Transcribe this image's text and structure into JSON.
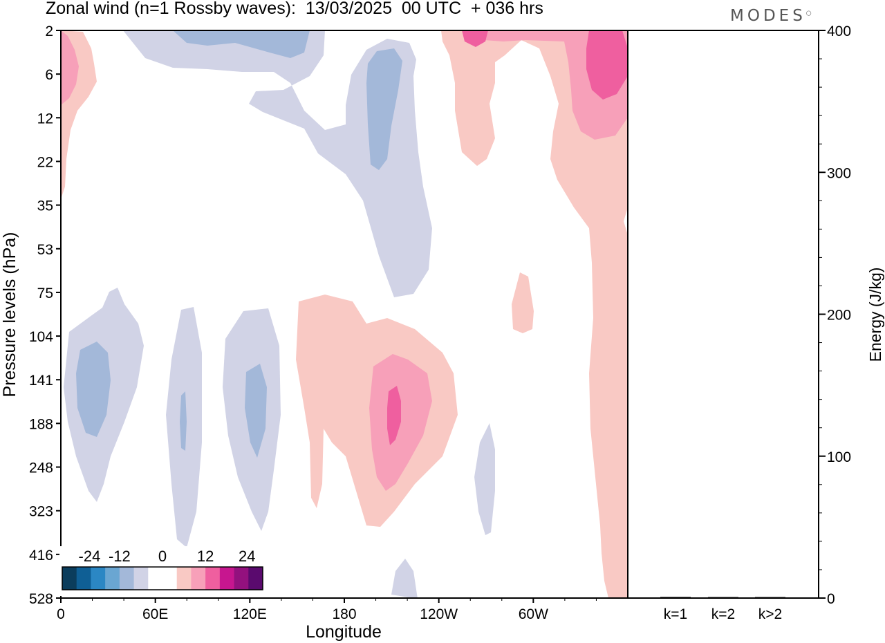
{
  "header": {
    "title": "Zonal wind (n=1 Rossby waves):  13/03/2025  00 UTC  + 036 hrs",
    "brand": "MODES"
  },
  "chart_data": [
    {
      "type": "heatmap",
      "title": "Zonal wind (n=1 Rossby waves):  13/03/2025  00 UTC  + 036 hrs",
      "xlabel": "Longitude",
      "ylabel": "Pressure levels (hPa)",
      "x_ticks": [
        "0",
        "60E",
        "120E",
        "180",
        "120W",
        "60W"
      ],
      "x_tick_degrees": [
        0,
        60,
        120,
        180,
        240,
        300
      ],
      "x_range_degrees": [
        0,
        360
      ],
      "y_ticks": [
        "2",
        "6",
        "12",
        "22",
        "35",
        "53",
        "75",
        "104",
        "141",
        "188",
        "248",
        "323",
        "416",
        "528"
      ],
      "y_axis": "reversed pressure levels (2 at top, 528 at bottom)",
      "colorbar": {
        "tick_labels": [
          "-24",
          "-12",
          "0",
          "12",
          "24"
        ],
        "colors": [
          "#0b3d5c",
          "#0f5f95",
          "#2b87c4",
          "#6aa6d2",
          "#a3b8d9",
          "#d1d3e6",
          "#ffffff",
          "#ffffff",
          "#f9c9c4",
          "#f7a0b9",
          "#ef5f9f",
          "#c7168f",
          "#93117e",
          "#5a0a6e"
        ]
      },
      "features": [
        {
          "sign": "negative",
          "level": "-12",
          "center_lon": 20,
          "center_level": "141"
        },
        {
          "sign": "negative",
          "level": "-12",
          "center_lon": 78,
          "center_level": "188"
        },
        {
          "sign": "negative",
          "level": "-12",
          "center_lon": 123,
          "center_level": "188"
        },
        {
          "sign": "negative",
          "level": "-12",
          "center_lon": 205,
          "center_level": "12"
        },
        {
          "sign": "negative",
          "level": "-6",
          "center_lon": 70,
          "center_level": "2"
        },
        {
          "sign": "positive",
          "level": "18",
          "center_lon": 212,
          "center_level": "188"
        },
        {
          "sign": "positive",
          "level": "18",
          "center_lon": 342,
          "center_level": "6"
        },
        {
          "sign": "positive",
          "level": "12",
          "center_lon": 5,
          "center_level": "6"
        },
        {
          "sign": "positive",
          "level": "6",
          "center_lon": 292,
          "center_level": "104"
        }
      ]
    },
    {
      "type": "bar",
      "ylabel": "Energy (J/kg)",
      "categories": [
        "k=1",
        "k=2",
        "k>2"
      ],
      "values": [
        0.8,
        0.3,
        0.6
      ],
      "ylim": [
        0,
        400
      ],
      "y_ticks": [
        "0",
        "100",
        "200",
        "300",
        "400"
      ]
    }
  ]
}
